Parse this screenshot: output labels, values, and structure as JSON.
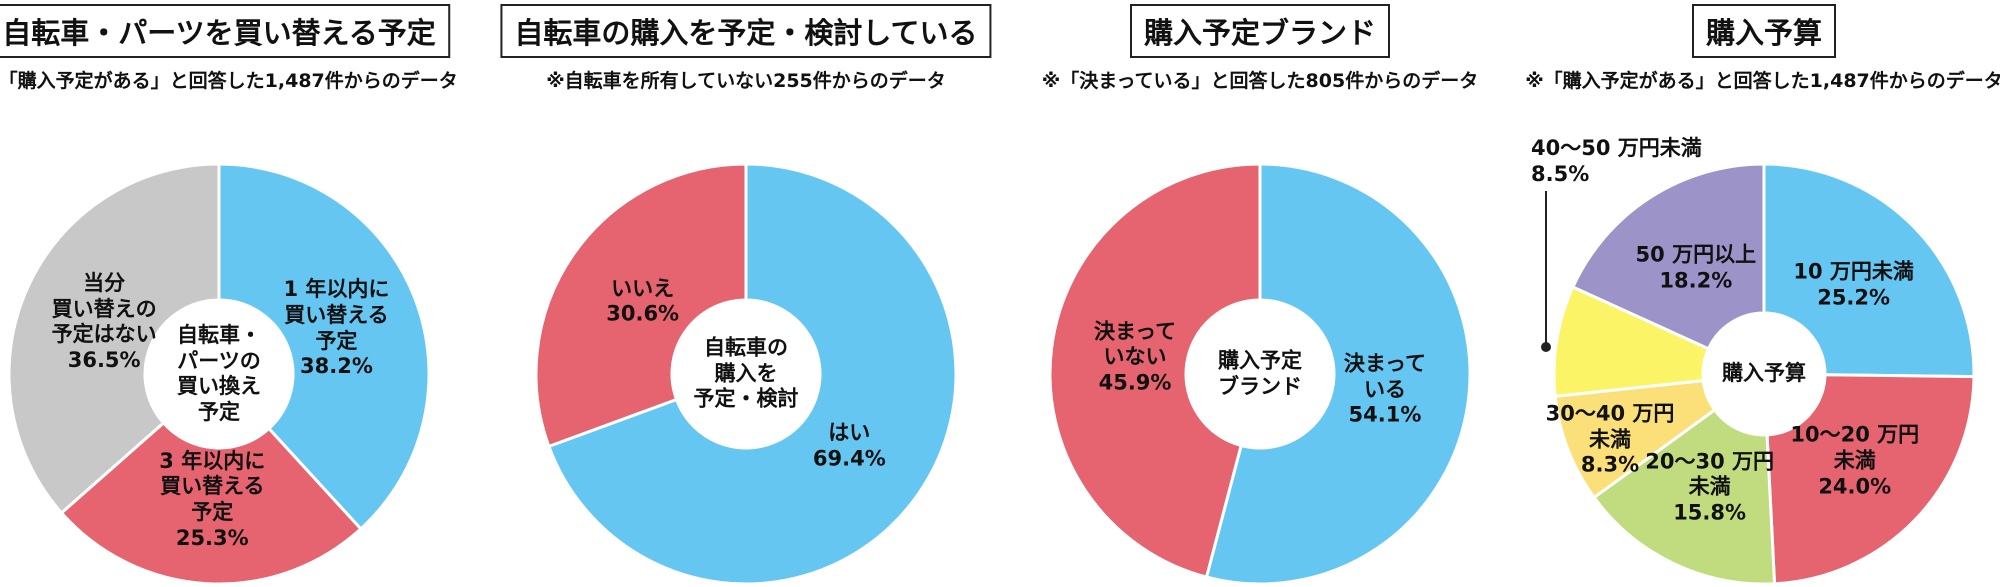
{
  "chart_data": [
    {
      "type": "pie",
      "title": "自転車・パーツを買い替える予定",
      "subtitle": "※「購入予定がある」と回答した1,487件からのデータ",
      "center_label": "自転車・\nパーツの\n買い換え\n予定",
      "categories": [
        "1 年以内に\n買い替える\n予定",
        "3 年以内に\n買い替える\n予定",
        "当分\n買い替えの\n予定はない"
      ],
      "values": [
        38.2,
        25.3,
        36.5
      ],
      "value_labels": [
        "38.2%",
        "25.3%",
        "36.5%"
      ],
      "colors": [
        "#66c6f2",
        "#e5646f",
        "#c8c8c8"
      ]
    },
    {
      "type": "pie",
      "title": "自転車の購入を予定・検討している",
      "subtitle": "※自転車を所有していない255件からのデータ",
      "center_label": "自転車の\n購入を\n予定・検討",
      "categories": [
        "はい",
        "いいえ"
      ],
      "values": [
        69.4,
        30.6
      ],
      "value_labels": [
        "69.4%",
        "30.6%"
      ],
      "colors": [
        "#66c6f2",
        "#e5646f"
      ]
    },
    {
      "type": "pie",
      "title": "購入予定ブランド",
      "subtitle": "※「決まっている」と回答した805件からのデータ",
      "center_label": "購入予定\nブランド",
      "categories": [
        "決まって\nいる",
        "決まって\nいない"
      ],
      "values": [
        54.1,
        45.9
      ],
      "value_labels": [
        "54.1%",
        "45.9%"
      ],
      "colors": [
        "#66c6f2",
        "#e5646f"
      ]
    },
    {
      "type": "pie",
      "title": "購入予算",
      "subtitle": "※「購入予定がある」と回答した1,487件からのデータ",
      "center_label": "購入予算",
      "categories": [
        "10 万円未満",
        "10〜20 万円\n未満",
        "20〜30 万円\n未満",
        "30〜40 万円\n未満",
        "40〜50 万円未満",
        "50 万円以上"
      ],
      "values": [
        25.2,
        24.0,
        15.8,
        8.3,
        8.5,
        18.2
      ],
      "value_labels": [
        "25.2%",
        "24.0%",
        "15.8%",
        "8.3%",
        "8.5%",
        "18.2%"
      ],
      "colors": [
        "#66c6f2",
        "#e5646f",
        "#c0dc7e",
        "#fbe07a",
        "#fbf466",
        "#9c94c8"
      ]
    }
  ]
}
